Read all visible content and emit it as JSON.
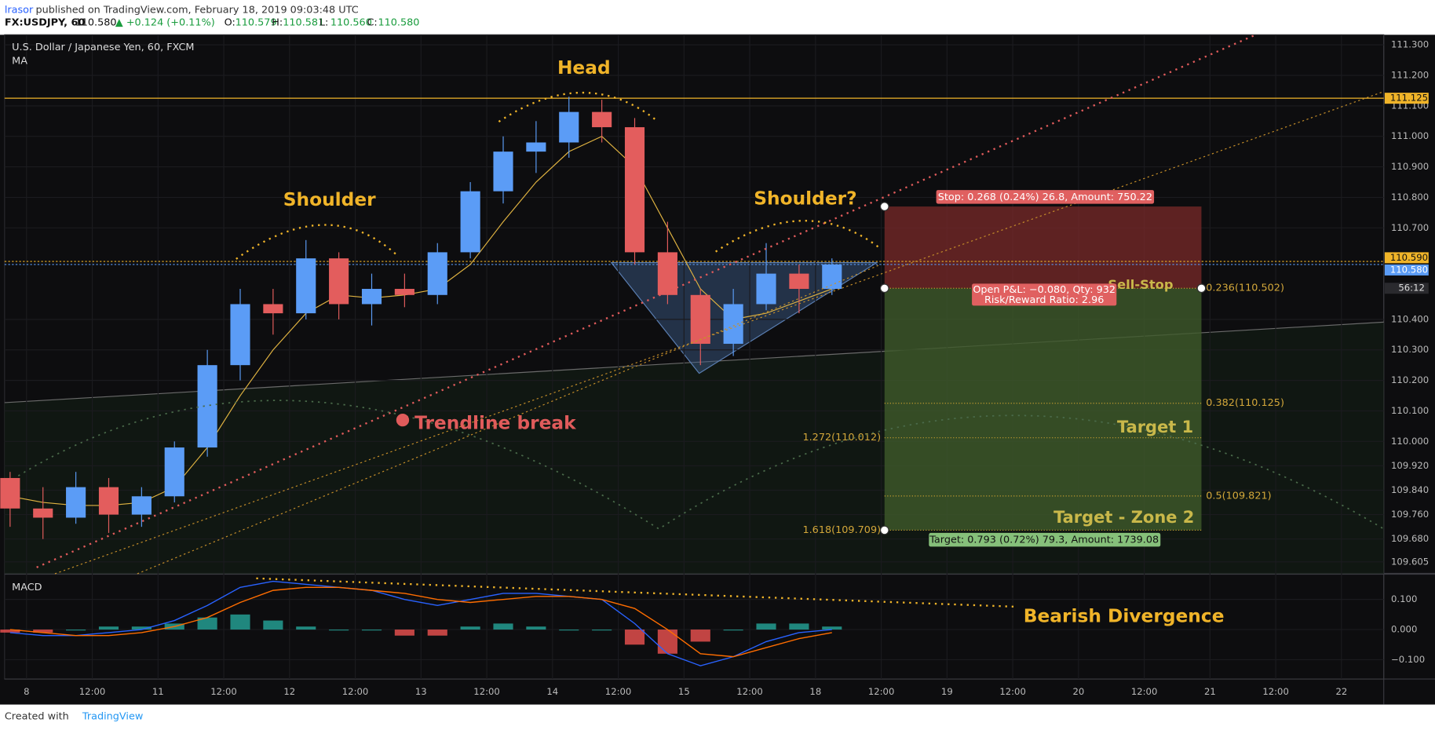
{
  "header": {
    "author": "lrasor",
    "published": "published on TradingView.com, February 18, 2019 09:03:48 UTC",
    "symbol": "FX:USDJPY, 60",
    "last": "110.580",
    "change": "▲ +0.124 (+0.11%)",
    "ohlc": [
      "O:",
      "110.579",
      "H:",
      "110.581",
      "L:",
      "110.560",
      "C:",
      "110.580"
    ]
  },
  "footer": {
    "created": "Created with",
    "brand": "TradingView"
  },
  "chart_data": [
    {
      "type": "candlestick",
      "title": "U.S. Dollar / Japanese Yen, 60, FXCM",
      "indicator": "MA",
      "x": [
        -0.25,
        0.25,
        0.75,
        1.25,
        1.75,
        2.25,
        2.75,
        3.25,
        3.75,
        4.25,
        4.75,
        5.25,
        5.75,
        6.25,
        6.75,
        7.25,
        7.75,
        8.25,
        8.75,
        9.25,
        9.75,
        10.25,
        10.75,
        11.25,
        11.75,
        12.25
      ],
      "open": [
        109.88,
        109.78,
        109.75,
        109.85,
        109.76,
        109.82,
        109.98,
        110.25,
        110.45,
        110.42,
        110.6,
        110.45,
        110.5,
        110.48,
        110.62,
        110.82,
        110.95,
        110.98,
        111.08,
        111.03,
        110.62,
        110.48,
        110.32,
        110.45,
        110.55,
        110.5
      ],
      "high": [
        109.9,
        109.85,
        109.9,
        109.88,
        109.85,
        110.0,
        110.3,
        110.5,
        110.5,
        110.66,
        110.62,
        110.55,
        110.55,
        110.65,
        110.85,
        111.0,
        111.05,
        111.13,
        111.12,
        111.06,
        110.72,
        110.5,
        110.5,
        110.65,
        110.58,
        110.6
      ],
      "low": [
        109.72,
        109.68,
        109.73,
        109.7,
        109.72,
        109.8,
        109.95,
        110.2,
        110.35,
        110.4,
        110.4,
        110.38,
        110.44,
        110.45,
        110.6,
        110.78,
        110.88,
        110.93,
        110.98,
        110.58,
        110.45,
        110.25,
        110.28,
        110.43,
        110.42,
        110.48
      ],
      "close": [
        109.78,
        109.75,
        109.85,
        109.76,
        109.82,
        109.98,
        110.25,
        110.45,
        110.42,
        110.6,
        110.45,
        110.5,
        110.48,
        110.62,
        110.82,
        110.95,
        110.98,
        111.08,
        111.03,
        110.62,
        110.48,
        110.32,
        110.45,
        110.55,
        110.5,
        110.58
      ],
      "ma": [
        109.82,
        109.8,
        109.79,
        109.79,
        109.8,
        109.85,
        109.98,
        110.15,
        110.3,
        110.42,
        110.48,
        110.47,
        110.48,
        110.5,
        110.58,
        110.72,
        110.85,
        110.95,
        111.0,
        110.9,
        110.7,
        110.5,
        110.4,
        110.42,
        110.46,
        110.5
      ],
      "up_color": "#5b9cf6",
      "down_color": "#e35d5d",
      "ma_color": "#e0b341",
      "xlim": [
        -0.334,
        20.643
      ],
      "xticks": [
        {
          "value": 0,
          "label": "8"
        },
        {
          "value": 1,
          "label": "12:00"
        },
        {
          "value": 2,
          "label": "11"
        },
        {
          "value": 3,
          "label": "12:00"
        },
        {
          "value": 4,
          "label": "12"
        },
        {
          "value": 5,
          "label": "12:00"
        },
        {
          "value": 6,
          "label": "13"
        },
        {
          "value": 7,
          "label": "12:00"
        },
        {
          "value": 8,
          "label": "14"
        },
        {
          "value": 9,
          "label": "12:00"
        },
        {
          "value": 10,
          "label": "15"
        },
        {
          "value": 11,
          "label": "12:00"
        },
        {
          "value": 12,
          "label": "18"
        },
        {
          "value": 13,
          "label": "12:00"
        },
        {
          "value": 14,
          "label": "19"
        },
        {
          "value": 15,
          "label": "12:00"
        },
        {
          "value": 16,
          "label": "20"
        },
        {
          "value": 17,
          "label": "12:00"
        },
        {
          "value": 18,
          "label": "21"
        },
        {
          "value": 19,
          "label": "12:00"
        },
        {
          "value": 20,
          "label": "22"
        }
      ],
      "ylim": [
        109.566,
        111.333
      ],
      "yticks": [
        {
          "value": 111.3,
          "label": "111.300"
        },
        {
          "value": 111.2,
          "label": "111.200"
        },
        {
          "value": 111.1,
          "label": "111.100"
        },
        {
          "value": 111.0,
          "label": "111.000"
        },
        {
          "value": 110.9,
          "label": "110.900"
        },
        {
          "value": 110.8,
          "label": "110.800"
        },
        {
          "value": 110.7,
          "label": "110.700"
        },
        {
          "value": 110.4,
          "label": "110.400"
        },
        {
          "value": 110.3,
          "label": "110.300"
        },
        {
          "value": 110.2,
          "label": "110.200"
        },
        {
          "value": 110.1,
          "label": "110.100"
        },
        {
          "value": 110.0,
          "label": "110.000"
        },
        {
          "value": 109.92,
          "label": "109.920"
        },
        {
          "value": 109.84,
          "label": "109.840"
        },
        {
          "value": 109.76,
          "label": "109.760"
        },
        {
          "value": 109.68,
          "label": "109.680"
        },
        {
          "value": 109.605,
          "label": "109.605"
        }
      ],
      "grid": true,
      "levels": [
        {
          "value": 111.125,
          "label": "111.125",
          "color": "#f0b429"
        },
        {
          "value": 110.59,
          "label": "110.590",
          "color": "#f0b429"
        },
        {
          "value": 110.58,
          "label": "110.580",
          "color": "#5b9cf6"
        }
      ],
      "countdown": "56:12",
      "position": {
        "entry": 110.502,
        "stop": 110.77,
        "target": 109.709,
        "x_start": 13.05,
        "x_end": 17.87
      },
      "fib": {
        "right": [
          {
            "value": 110.502,
            "label": "0.236(110.502)"
          },
          {
            "value": 110.125,
            "label": "0.382(110.125)"
          },
          {
            "value": 109.821,
            "label": "0.5(109.821)"
          }
        ],
        "left": [
          {
            "value": 110.012,
            "label": "1.272(110.012)"
          },
          {
            "value": 109.709,
            "label": "1.618(109.709)"
          }
        ]
      },
      "annotations": {
        "head": "Head",
        "shoulder": "Shoulder",
        "shoulder2": "Shoulder?",
        "trendline": "Trendline break",
        "target1": "Target 1",
        "target2": "Target - Zone 2",
        "sellstop": "Sell-Stop",
        "stop": "Stop: 0.268 (0.24%) 26.8, Amount: 750.22",
        "pnl": "Open P&L: −0.080, Qty: 932",
        "rr": "Risk/Reward Ratio: 2.96",
        "target": "Target: 0.793 (0.72%) 79.3, Amount: 1739.08"
      }
    },
    {
      "type": "macd",
      "title": "MACD",
      "annotation": "Bearish Divergence",
      "macd": [
        -0.01,
        -0.02,
        -0.02,
        -0.01,
        0.0,
        0.03,
        0.08,
        0.14,
        0.16,
        0.15,
        0.14,
        0.13,
        0.1,
        0.08,
        0.1,
        0.12,
        0.12,
        0.11,
        0.1,
        0.02,
        -0.08,
        -0.12,
        -0.09,
        -0.04,
        -0.01,
        0.0
      ],
      "signal": [
        0,
        -0.01,
        -0.02,
        -0.02,
        -0.01,
        0.01,
        0.04,
        0.09,
        0.13,
        0.14,
        0.14,
        0.13,
        0.12,
        0.1,
        0.09,
        0.1,
        0.11,
        0.11,
        0.1,
        0.07,
        0.0,
        -0.08,
        -0.09,
        -0.06,
        -0.03,
        -0.01
      ],
      "histogram": [
        -0.01,
        -0.01,
        0,
        0.01,
        0.01,
        0.02,
        0.04,
        0.05,
        0.03,
        0.01,
        0,
        0,
        -0.02,
        -0.02,
        0.01,
        0.02,
        0.01,
        0,
        0,
        -0.05,
        -0.08,
        -0.04,
        0,
        0.02,
        0.02,
        0.01
      ],
      "macd_color": "#2962ff",
      "signal_color": "#ff6d00",
      "pos_color": "#26a69a",
      "neg_color": "#ef5350",
      "ylim": [
        -0.164,
        0.182
      ],
      "yticks": [
        {
          "value": 0.1,
          "label": "0.100"
        },
        {
          "value": 0,
          "label": "0.000"
        },
        {
          "value": -0.1,
          "label": "−0.100"
        }
      ]
    }
  ]
}
